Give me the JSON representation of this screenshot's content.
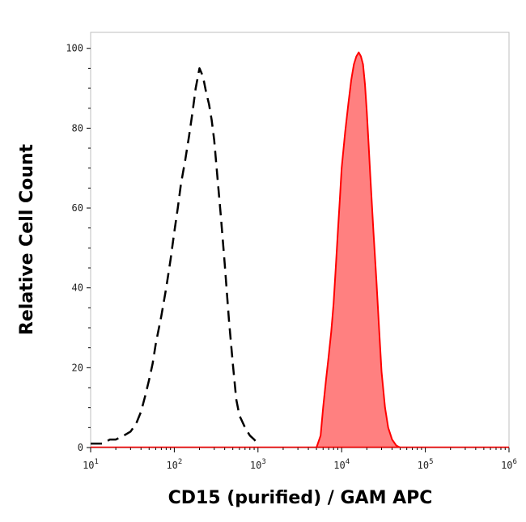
{
  "chart_data": {
    "type": "area",
    "xlabel": "CD15 (purified) / GAM APC",
    "ylabel": "Relative Cell Count",
    "x_scale": "log",
    "xlim": [
      10,
      1000000
    ],
    "ylim": [
      0,
      104
    ],
    "x_ticks": [
      {
        "base": "10",
        "exp": "1"
      },
      {
        "base": "10",
        "exp": "2"
      },
      {
        "base": "10",
        "exp": "3"
      },
      {
        "base": "10",
        "exp": "4"
      },
      {
        "base": "10",
        "exp": "5"
      },
      {
        "base": "10",
        "exp": "6"
      }
    ],
    "y_ticks": [
      "0",
      "20",
      "40",
      "60",
      "80",
      "100"
    ],
    "grid": false,
    "series": [
      {
        "style": "dashed-outline",
        "color": "#000000",
        "x": [
          10,
          12,
          14,
          17,
          20,
          25,
          30,
          35,
          40,
          45,
          50,
          55,
          60,
          70,
          80,
          90,
          100,
          110,
          120,
          135,
          150,
          165,
          180,
          200,
          220,
          240,
          260,
          280,
          300,
          330,
          360,
          400,
          450,
          500,
          550,
          600,
          700,
          800,
          900,
          1000
        ],
        "y": [
          1,
          1,
          1,
          2,
          2,
          3,
          4,
          6,
          9,
          13,
          17,
          21,
          26,
          33,
          40,
          47,
          54,
          60,
          66,
          72,
          78,
          84,
          90,
          95,
          93,
          89,
          86,
          82,
          77,
          67,
          58,
          46,
          32,
          21,
          12,
          8,
          5,
          3,
          2,
          1
        ]
      },
      {
        "style": "filled",
        "color": "#ff0000",
        "fill": "#ff8080",
        "x": [
          5000,
          5600,
          6000,
          6500,
          7000,
          7500,
          8000,
          8500,
          9000,
          9500,
          10000,
          11000,
          12000,
          13000,
          14000,
          15000,
          16000,
          17000,
          18000,
          19000,
          20000,
          21000,
          22000,
          24000,
          26000,
          28000,
          30000,
          33000,
          36000,
          40000,
          45000,
          50000
        ],
        "y": [
          0,
          3,
          10,
          17,
          23,
          29,
          36,
          45,
          54,
          62,
          70,
          79,
          86,
          92,
          96,
          98,
          99,
          98,
          96,
          91,
          84,
          76,
          68,
          54,
          42,
          30,
          19,
          10,
          5,
          2,
          0.5,
          0
        ]
      }
    ]
  }
}
